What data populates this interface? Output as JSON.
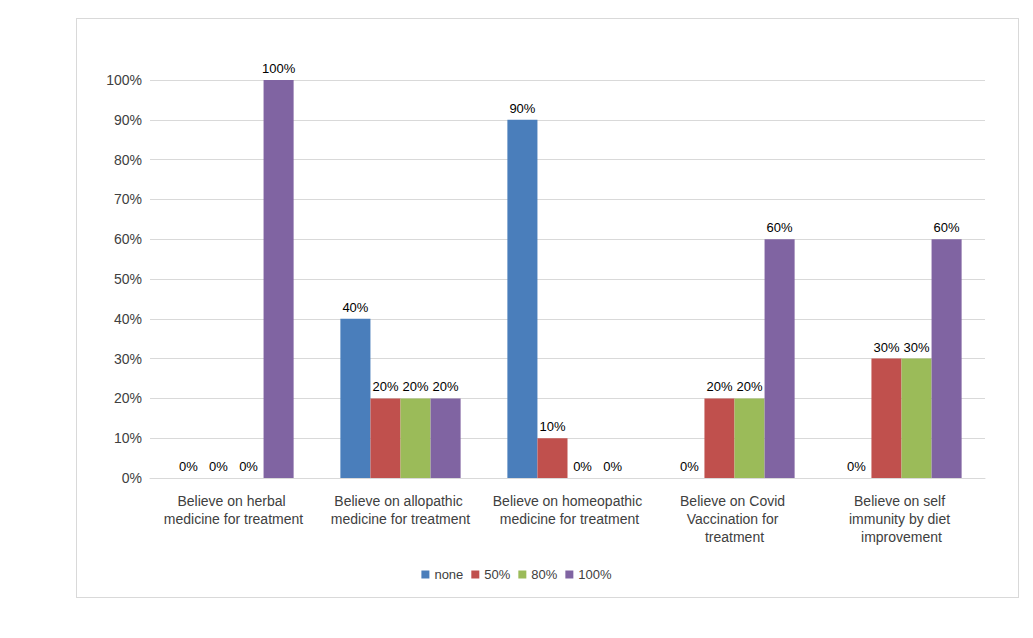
{
  "chart_data": {
    "type": "bar",
    "categories": [
      "Believe on herbal medicine for treatment",
      "Believe on allopathic medicine for treatment",
      "Believe on homeopathic medicine for treatment",
      "Believe on Covid Vaccination for treatment",
      "Believe on self immunity by diet improvement"
    ],
    "series": [
      {
        "name": "none",
        "color": "#4a7ebb",
        "values": [
          0,
          40,
          90,
          0,
          0
        ],
        "value_labels": [
          "0%",
          "40%",
          "90%",
          "0%",
          "0%"
        ]
      },
      {
        "name": "50%",
        "color": "#c0504d",
        "values": [
          0,
          20,
          10,
          20,
          30
        ],
        "value_labels": [
          "0%",
          "20%",
          "10%",
          "20%",
          "30%"
        ]
      },
      {
        "name": "80%",
        "color": "#9bbb59",
        "values": [
          0,
          20,
          0,
          20,
          30
        ],
        "value_labels": [
          "0%",
          "20%",
          "0%",
          "20%",
          "30%"
        ]
      },
      {
        "name": "100%",
        "color": "#8064a2",
        "values": [
          100,
          20,
          0,
          60,
          60
        ],
        "value_labels": [
          "100%",
          "20%",
          "0%",
          "60%",
          "60%"
        ]
      }
    ],
    "ylim": [
      0,
      100
    ],
    "yticks": [
      {
        "value": 0,
        "label": "0%"
      },
      {
        "value": 10,
        "label": "10%"
      },
      {
        "value": 20,
        "label": "20%"
      },
      {
        "value": 30,
        "label": "30%"
      },
      {
        "value": 40,
        "label": "40%"
      },
      {
        "value": 50,
        "label": "50%"
      },
      {
        "value": 60,
        "label": "60%"
      },
      {
        "value": 70,
        "label": "70%"
      },
      {
        "value": 80,
        "label": "80%"
      },
      {
        "value": 90,
        "label": "90%"
      },
      {
        "value": 100,
        "label": "100%"
      }
    ],
    "grid": true,
    "legend": "bottom",
    "data_labels": true
  }
}
